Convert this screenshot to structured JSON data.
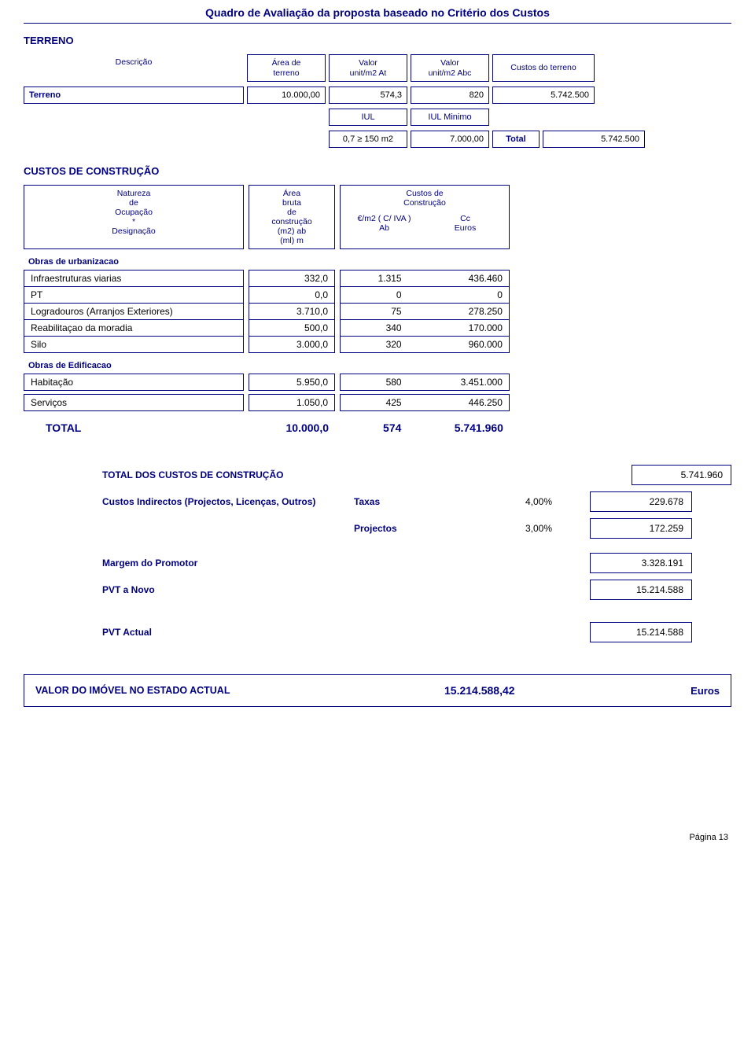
{
  "title": "Quadro de Avaliação da proposta baseado no Critério dos Custos",
  "terreno": {
    "heading": "TERRENO",
    "col_desc": "Descrição",
    "col_area_l1": "Área de",
    "col_area_l2": "terreno",
    "col_at_l1": "Valor",
    "col_at_l2": "unit/m2 At",
    "col_abc_l1": "Valor",
    "col_abc_l2": "unit/m2 Abc",
    "col_custos": "Custos do terreno",
    "row_label": "Terreno",
    "area": "10.000,00",
    "at": "574,3",
    "abc": "820",
    "custos": "5.742.500",
    "iul": "IUL",
    "iul_min": "IUL Minimo",
    "cond": "0,7 ≥ 150 m2",
    "cond_val": "7.000,00",
    "total_lbl": "Total",
    "total_val": "5.742.500"
  },
  "custos": {
    "heading": "CUSTOS DE CONSTRUÇÃO",
    "nat_l1": "Natureza",
    "nat_l2": "de",
    "nat_l3": "Ocupação",
    "nat_l4": "*",
    "nat_l5": "Designação",
    "area_l1": "Área",
    "area_l2": "bruta",
    "area_l3": "de",
    "area_l4": "construção",
    "area_l5": "(m2) ab",
    "area_l6": "(ml) m",
    "cc_l1": "Custos de",
    "cc_l2": "Construção",
    "cc_l3a": "€/m2 ( C/ IVA )",
    "cc_l3b": "Cc",
    "cc_l4a": "Ab",
    "cc_l4b": "Euros",
    "sec1": "Obras de urbanizacao",
    "rows1": [
      {
        "d": "Infraestruturas viarias",
        "a": "332,0",
        "u": "1.315",
        "c": "436.460"
      },
      {
        "d": "PT",
        "a": "0,0",
        "u": "0",
        "c": "0"
      },
      {
        "d": "Logradouros (Arranjos Exteriores)",
        "a": "3.710,0",
        "u": "75",
        "c": "278.250"
      },
      {
        "d": "Reabilitaçao da moradia",
        "a": "500,0",
        "u": "340",
        "c": "170.000"
      },
      {
        "d": "Silo",
        "a": "3.000,0",
        "u": "320",
        "c": "960.000"
      }
    ],
    "sec2": "Obras de Edificacao",
    "rows2": [
      {
        "d": "Habitação",
        "a": "5.950,0",
        "u": "580",
        "c": "3.451.000"
      },
      {
        "d": "Serviços",
        "a": "1.050,0",
        "u": "425",
        "c": "446.250"
      }
    ],
    "total_lbl": "TOTAL",
    "total_a": "10.000,0",
    "total_u": "574",
    "total_c": "5.741.960"
  },
  "summary": {
    "tot_constr_lbl": "TOTAL DOS CUSTOS DE CONSTRUÇÃO",
    "tot_constr_val": "5.741.960",
    "indirect_lbl": "Custos Indirectos (Projectos, Licenças, Outros)",
    "taxas_lbl": "Taxas",
    "taxas_pct": "4,00%",
    "taxas_val": "229.678",
    "proj_lbl": "Projectos",
    "proj_pct": "3,00%",
    "proj_val": "172.259",
    "margem_lbl": "Margem do Promotor",
    "margem_val": "3.328.191",
    "pvt_novo_lbl": "PVT a Novo",
    "pvt_novo_val": "15.214.588",
    "pvt_actual_lbl": "PVT Actual",
    "pvt_actual_val": "15.214.588"
  },
  "final": {
    "label": "VALOR DO IMÓVEL NO ESTADO ACTUAL",
    "value": "15.214.588,42",
    "unit": "Euros"
  },
  "page_num": "Página 13"
}
